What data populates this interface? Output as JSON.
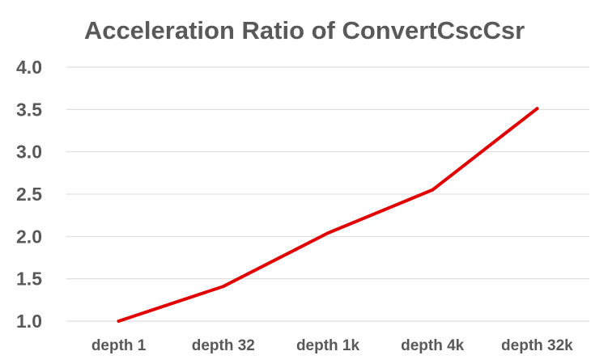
{
  "chart_data": {
    "type": "line",
    "title": "Acceleration Ratio of ConvertCscCsr",
    "xlabel": "",
    "ylabel": "",
    "categories": [
      "depth 1",
      "depth 32",
      "depth 1k",
      "depth 4k",
      "depth 32k"
    ],
    "series": [
      {
        "values": [
          1.0,
          1.41,
          2.04,
          2.55,
          3.51
        ],
        "color": "#e00000"
      }
    ],
    "ylim": [
      1.0,
      4.0
    ],
    "yticks": [
      "1.0",
      "1.5",
      "2.0",
      "2.5",
      "3.0",
      "3.5",
      "4.0"
    ],
    "ytick_values": [
      1.0,
      1.5,
      2.0,
      2.5,
      3.0,
      3.5,
      4.0
    ],
    "grid": true,
    "legend": "none"
  }
}
